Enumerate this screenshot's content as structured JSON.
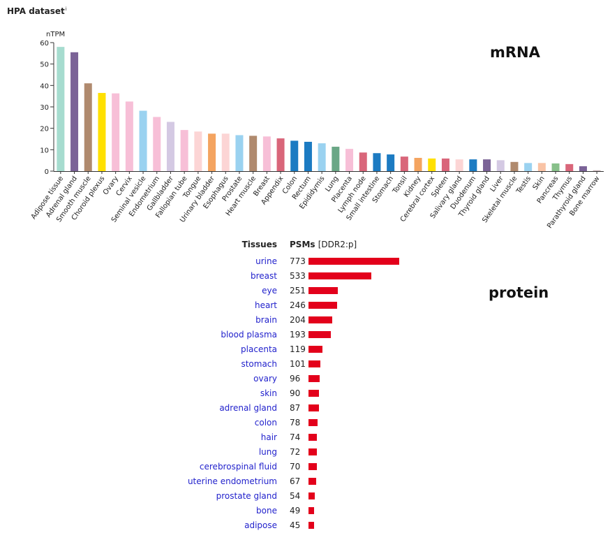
{
  "header": {
    "title": "HPA dataset",
    "info_mark": "i"
  },
  "labels": {
    "mrna": "mRNA",
    "protein": "protein"
  },
  "chart_data": [
    {
      "type": "bar",
      "ylabel": "nTPM",
      "ylim": [
        0,
        60
      ],
      "yticks": [
        0,
        10,
        20,
        30,
        40,
        50,
        60
      ],
      "categories": [
        "Adipose tissue",
        "Adrenal gland",
        "Smooth muscle",
        "Choroid plexus",
        "Ovary",
        "Cervix",
        "Seminal vesicle",
        "Endometrium",
        "Gallbladder",
        "Fallopian tube",
        "Tongue",
        "Urinary bladder",
        "Esophagus",
        "Prostate",
        "Heart muscle",
        "Breast",
        "Appendix",
        "Colon",
        "Rectum",
        "Epididymis",
        "Lung",
        "Placenta",
        "Lymph node",
        "Small intestine",
        "Stomach",
        "Tonsil",
        "Kidney",
        "Cerebral cortex",
        "Spleen",
        "Salivary gland",
        "Duodenum",
        "Thyroid gland",
        "Liver",
        "Skeletal muscle",
        "Testis",
        "Skin",
        "Pancreas",
        "Thymus",
        "Parathyroid gland",
        "Bone marrow"
      ],
      "values": [
        58,
        55.5,
        41,
        36.5,
        36.3,
        32.5,
        28.2,
        25.3,
        23,
        19.2,
        18.5,
        17.5,
        17.5,
        16.8,
        16.5,
        16.2,
        15.3,
        14.2,
        13.7,
        13,
        11.4,
        10.4,
        8.7,
        8.4,
        7.8,
        6.8,
        6.2,
        5.9,
        5.9,
        5.5,
        5.5,
        5.5,
        5.1,
        4.3,
        3.8,
        3.8,
        3.6,
        3.3,
        2.3,
        0.4
      ],
      "colors": [
        "#a6dccf",
        "#7b6397",
        "#b08a6e",
        "#ffe000",
        "#f7bfd7",
        "#f7bfd7",
        "#9ad2f0",
        "#f7bfd7",
        "#d4c9e3",
        "#f7bfd7",
        "#fcd5d5",
        "#f4a460",
        "#fcd5d5",
        "#9ad2f0",
        "#b08a6e",
        "#f7bfd7",
        "#d9667a",
        "#1c7bc2",
        "#1c7bc2",
        "#9ad2f0",
        "#6aa786",
        "#f7bfd7",
        "#d9667a",
        "#1c7bc2",
        "#1c7bc2",
        "#d9667a",
        "#f4a460",
        "#ffe000",
        "#d9667a",
        "#fcd5d5",
        "#1c7bc2",
        "#7b6397",
        "#d4c9e3",
        "#b08a6e",
        "#9ad2f0",
        "#f9c3a5",
        "#88c08a",
        "#d9667a",
        "#7b6397",
        "#c8b2b6"
      ]
    },
    {
      "type": "bar",
      "orientation": "horizontal",
      "columns": [
        "Tissues",
        "PSMs [DDR2:p]"
      ],
      "categories": [
        "urine",
        "breast",
        "eye",
        "heart",
        "brain",
        "blood plasma",
        "placenta",
        "stomach",
        "ovary",
        "skin",
        "adrenal gland",
        "colon",
        "hair",
        "lung",
        "cerebrospinal fluid",
        "uterine endometrium",
        "prostate gland",
        "bone",
        "adipose"
      ],
      "values": [
        773,
        533,
        251,
        246,
        204,
        193,
        119,
        101,
        96,
        90,
        87,
        78,
        74,
        72,
        70,
        67,
        54,
        49,
        45
      ],
      "color": "#e3001b"
    }
  ]
}
